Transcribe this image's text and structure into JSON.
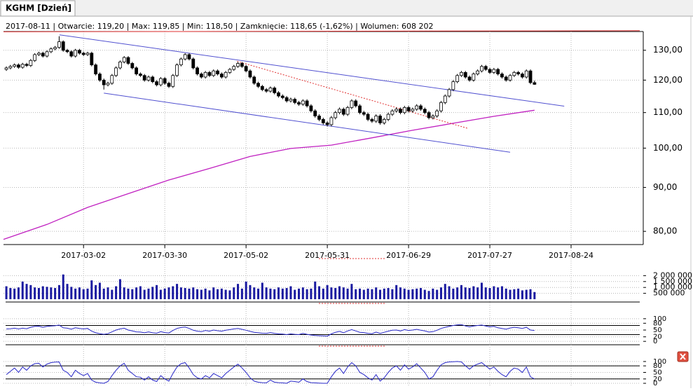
{
  "tab": "KGHM [Dzień]",
  "info": "2017-08-11 | Otwarcie: 119,20 | Max: 119,85 | Min: 118,50 | Zamknięcie: 118,65 (-1,62%)  | Wolumen: 608 202",
  "chart_data": [
    {
      "type": "candlestick",
      "log": true,
      "grid": true,
      "xlim": [
        -0.7,
        155.9
      ],
      "ylim": [
        77.8,
        136.7
      ],
      "yticks": [
        {
          "value": 80,
          "label": "80,00"
        },
        {
          "value": 90,
          "label": "90,00"
        },
        {
          "value": 100,
          "label": "100,00"
        },
        {
          "value": 110,
          "label": "110,00"
        },
        {
          "value": 120,
          "label": "120,00"
        },
        {
          "value": 130,
          "label": "130,00"
        }
      ],
      "xticks": [
        {
          "value": 19,
          "label": "2017-03-02"
        },
        {
          "value": 39,
          "label": "2017-03-30"
        },
        {
          "value": 59,
          "label": "2017-05-02"
        },
        {
          "value": 79,
          "label": "2017-05-31"
        },
        {
          "value": 99,
          "label": "2017-06-29"
        },
        {
          "value": 119,
          "label": "2017-07-27"
        },
        {
          "value": 139,
          "label": "2017-08-24"
        }
      ],
      "open": [
        123.5,
        124.0,
        124.5,
        125.0,
        124.2,
        125.2,
        124.8,
        126.5,
        128.5,
        129.0,
        128.0,
        129.5,
        130.5,
        131.0,
        133.0,
        130.0,
        129.5,
        128.0,
        130.0,
        129.0,
        128.5,
        129.0,
        125.0,
        122.0,
        120.0,
        118.5,
        119.0,
        121.5,
        124.0,
        126.0,
        127.5,
        125.5,
        124.0,
        122.0,
        121.5,
        120.0,
        121.0,
        119.5,
        118.5,
        120.5,
        119.0,
        118.0,
        121.5,
        125.0,
        127.0,
        128.5,
        127.0,
        124.0,
        122.0,
        121.0,
        122.5,
        121.5,
        123.0,
        122.0,
        121.0,
        122.5,
        123.5,
        124.5,
        125.5,
        124.5,
        123.0,
        121.0,
        119.0,
        118.0,
        117.0,
        116.5,
        117.5,
        116.0,
        115.0,
        114.5,
        113.5,
        114.0,
        113.0,
        112.5,
        113.5,
        112.0,
        110.5,
        109.0,
        108.0,
        107.0,
        106.5,
        108.5,
        110.0,
        111.0,
        109.5,
        111.5,
        113.5,
        112.0,
        110.0,
        109.5,
        108.0,
        107.5,
        109.0,
        107.0,
        108.0,
        109.5,
        110.5,
        111.0,
        110.0,
        111.5,
        110.5,
        111.0,
        112.0,
        111.0,
        110.0,
        108.5,
        109.0,
        110.5,
        113.0,
        115.0,
        117.0,
        119.5,
        121.5,
        122.5,
        121.0,
        120.0,
        122.0,
        123.0,
        124.5,
        123.5,
        122.5,
        123.5,
        122.0,
        121.0,
        120.0,
        121.5,
        122.5,
        122.0,
        121.0,
        123.0,
        119.2
      ],
      "high": [
        124.5,
        125.0,
        125.5,
        125.5,
        125.7,
        125.7,
        127.0,
        129.0,
        129.5,
        129.5,
        130.0,
        131.0,
        131.5,
        135.0,
        133.5,
        130.5,
        130.0,
        130.5,
        130.5,
        129.5,
        129.5,
        129.5,
        125.5,
        122.5,
        120.5,
        119.5,
        122.0,
        124.5,
        126.5,
        128.0,
        128.0,
        126.0,
        124.5,
        122.5,
        122.0,
        121.5,
        121.5,
        120.0,
        121.0,
        121.0,
        119.5,
        122.0,
        125.5,
        127.5,
        129.0,
        129.0,
        127.5,
        124.5,
        122.5,
        123.0,
        123.0,
        123.5,
        123.5,
        122.5,
        123.0,
        124.0,
        125.0,
        126.0,
        126.0,
        125.0,
        123.5,
        121.5,
        119.5,
        118.5,
        117.5,
        118.0,
        118.0,
        116.5,
        115.5,
        115.0,
        114.5,
        114.5,
        113.5,
        114.0,
        114.0,
        112.5,
        111.0,
        109.5,
        108.5,
        107.5,
        109.0,
        110.5,
        111.5,
        111.5,
        112.0,
        114.0,
        114.0,
        112.5,
        110.5,
        110.0,
        108.5,
        109.5,
        109.5,
        108.5,
        110.0,
        111.0,
        111.5,
        111.5,
        112.0,
        112.0,
        111.5,
        112.5,
        112.5,
        111.5,
        110.5,
        109.5,
        111.0,
        113.5,
        115.5,
        117.5,
        120.0,
        122.0,
        123.0,
        123.0,
        121.5,
        122.5,
        123.5,
        125.0,
        125.0,
        124.0,
        124.0,
        124.0,
        122.5,
        121.5,
        122.0,
        123.0,
        123.0,
        122.5,
        123.5,
        123.5,
        119.85
      ],
      "low": [
        123.0,
        123.5,
        124.0,
        123.7,
        123.7,
        124.3,
        124.3,
        126.0,
        128.0,
        127.5,
        127.5,
        129.0,
        130.0,
        130.5,
        129.5,
        129.0,
        127.5,
        127.5,
        128.5,
        128.0,
        128.0,
        124.5,
        121.5,
        119.5,
        117.0,
        118.0,
        118.5,
        121.0,
        123.5,
        125.5,
        125.0,
        123.5,
        121.5,
        121.0,
        119.5,
        119.5,
        119.0,
        118.0,
        118.0,
        118.5,
        117.5,
        117.5,
        121.0,
        124.5,
        126.5,
        126.5,
        123.5,
        121.5,
        120.5,
        120.5,
        121.0,
        121.0,
        121.5,
        120.5,
        120.5,
        122.0,
        123.0,
        124.0,
        124.0,
        122.5,
        120.5,
        118.5,
        117.5,
        116.5,
        116.0,
        116.0,
        115.5,
        114.5,
        114.0,
        113.0,
        113.0,
        112.5,
        112.0,
        112.0,
        111.5,
        110.0,
        108.5,
        107.5,
        106.5,
        106.0,
        106.0,
        108.0,
        109.5,
        109.0,
        109.0,
        111.0,
        111.5,
        109.5,
        109.0,
        107.5,
        107.0,
        107.0,
        106.5,
        106.5,
        107.5,
        109.0,
        110.0,
        109.5,
        109.5,
        110.0,
        110.0,
        110.5,
        110.5,
        109.5,
        108.0,
        108.0,
        108.5,
        110.0,
        112.5,
        114.5,
        116.5,
        119.0,
        121.0,
        120.5,
        119.5,
        119.5,
        121.5,
        122.5,
        123.0,
        122.0,
        122.0,
        121.5,
        120.5,
        119.5,
        119.5,
        121.0,
        121.5,
        120.5,
        120.5,
        118.7,
        118.5
      ],
      "close": [
        124.0,
        124.5,
        125.0,
        124.2,
        125.2,
        124.8,
        126.5,
        128.5,
        129.0,
        128.0,
        129.5,
        130.5,
        131.0,
        133.0,
        130.0,
        129.5,
        128.0,
        130.0,
        129.0,
        128.5,
        129.0,
        125.0,
        122.0,
        120.0,
        118.5,
        119.0,
        121.5,
        124.0,
        126.0,
        127.5,
        125.5,
        124.0,
        122.0,
        121.5,
        120.0,
        121.0,
        119.5,
        118.5,
        120.5,
        119.0,
        118.0,
        121.5,
        125.0,
        127.0,
        128.5,
        127.0,
        124.0,
        122.0,
        121.0,
        122.5,
        121.5,
        123.0,
        122.0,
        121.0,
        122.5,
        123.5,
        124.5,
        125.5,
        124.5,
        123.0,
        121.0,
        119.0,
        118.0,
        117.0,
        116.5,
        117.5,
        116.0,
        115.0,
        114.5,
        113.5,
        114.0,
        113.0,
        112.5,
        113.5,
        112.0,
        110.5,
        109.0,
        108.0,
        107.0,
        106.5,
        108.5,
        110.0,
        111.0,
        109.5,
        111.5,
        113.5,
        112.0,
        110.0,
        109.5,
        108.0,
        107.5,
        109.0,
        107.0,
        108.0,
        109.5,
        110.5,
        111.0,
        110.0,
        111.5,
        110.5,
        111.0,
        112.0,
        111.0,
        110.0,
        108.5,
        109.0,
        110.5,
        113.0,
        115.0,
        117.0,
        119.5,
        121.5,
        122.5,
        121.0,
        120.0,
        122.0,
        123.0,
        124.5,
        123.5,
        122.5,
        123.5,
        122.0,
        121.0,
        120.0,
        121.5,
        122.5,
        122.0,
        121.0,
        123.0,
        119.2,
        118.65
      ],
      "ma": {
        "color": "#c020c0",
        "x": [
          -0.7,
          10,
          20,
          30,
          40,
          50,
          60,
          70,
          80,
          90,
          100,
          110,
          120,
          130
        ],
        "values": [
          78.3,
          81.5,
          85.3,
          88.5,
          91.8,
          94.7,
          97.8,
          99.9,
          100.8,
          102.8,
          104.9,
          106.9,
          108.9,
          110.7
        ]
      },
      "lines": [
        {
          "color": "#e03030",
          "dashed": false,
          "x": [
            -0.7,
            155.9
          ],
          "values": [
            136.6,
            137.0
          ]
        },
        {
          "color": "#5050d0",
          "dashed": false,
          "x": [
            13.1,
            137.3
          ],
          "values": [
            135.5,
            111.9
          ]
        },
        {
          "color": "#5050d0",
          "dashed": false,
          "x": [
            24,
            124
          ],
          "values": [
            115.9,
            98.9
          ]
        },
        {
          "color": "#e03030",
          "dashed": true,
          "x": [
            56.8,
            113.7
          ],
          "values": [
            126.2,
            105.4
          ]
        }
      ]
    },
    {
      "type": "bar",
      "color": "#1a1aa0",
      "ylim": [
        0,
        2500000
      ],
      "yticks": [
        {
          "value": 500000,
          "label": "500 000"
        },
        {
          "value": 1000000,
          "label": "1 000 000"
        },
        {
          "value": 1500000,
          "label": "1 500 000"
        },
        {
          "value": 2000000,
          "label": "2 000 000"
        }
      ],
      "values": [
        1100000,
        950000,
        900000,
        1000000,
        1500000,
        1300000,
        1200000,
        1000000,
        950000,
        1100000,
        1050000,
        1000000,
        950000,
        1200000,
        2100000,
        1300000,
        1050000,
        900000,
        1000000,
        850000,
        900000,
        1600000,
        1200000,
        1400000,
        900000,
        1000000,
        800000,
        1100000,
        1700000,
        1000000,
        900000,
        850000,
        1000000,
        1100000,
        800000,
        900000,
        1050000,
        1200000,
        800000,
        900000,
        1000000,
        1100000,
        1300000,
        1000000,
        950000,
        900000,
        1000000,
        850000,
        800000,
        900000,
        750000,
        1000000,
        850000,
        900000,
        800000,
        750000,
        1000000,
        1300000,
        900000,
        1500000,
        1200000,
        1000000,
        900000,
        1400000,
        1000000,
        900000,
        850000,
        1000000,
        900000,
        950000,
        1100000,
        800000,
        900000,
        1000000,
        850000,
        900000,
        1500000,
        1100000,
        900000,
        1200000,
        1000000,
        950000,
        1100000,
        1000000,
        900000,
        1300000,
        850000,
        900000,
        800000,
        900000,
        850000,
        1000000,
        800000,
        900000,
        950000,
        850000,
        1200000,
        1000000,
        900000,
        800000,
        850000,
        900000,
        950000,
        800000,
        700000,
        900000,
        800000,
        1000000,
        1300000,
        1100000,
        900000,
        1000000,
        1200000,
        1000000,
        950000,
        1100000,
        1000000,
        1400000,
        1000000,
        950000,
        1100000,
        1000000,
        1100000,
        900000,
        800000,
        850000,
        900000,
        750000,
        800000,
        850000,
        608202
      ]
    },
    {
      "type": "line",
      "color": "#2828c8",
      "ylim": [
        -15,
        115
      ],
      "yticks": [
        0,
        20,
        50,
        80,
        100
      ],
      "levels": [
        70,
        30
      ],
      "values": [
        55,
        56,
        58,
        55,
        58,
        56,
        62,
        66,
        67,
        62,
        66,
        68,
        69,
        72,
        60,
        58,
        54,
        60,
        57,
        55,
        57,
        45,
        38,
        34,
        31,
        34,
        42,
        50,
        55,
        58,
        50,
        46,
        42,
        41,
        38,
        42,
        38,
        36,
        43,
        39,
        37,
        48,
        57,
        61,
        63,
        57,
        49,
        45,
        43,
        48,
        45,
        50,
        47,
        45,
        49,
        52,
        55,
        57,
        53,
        49,
        44,
        40,
        38,
        36,
        35,
        39,
        35,
        33,
        32,
        30,
        33,
        31,
        30,
        35,
        31,
        28,
        26,
        25,
        24,
        23,
        33,
        40,
        44,
        38,
        46,
        52,
        46,
        40,
        39,
        35,
        34,
        41,
        35,
        40,
        45,
        49,
        50,
        46,
        52,
        48,
        50,
        53,
        49,
        46,
        41,
        43,
        49,
        57,
        62,
        66,
        70,
        73,
        74,
        68,
        64,
        68,
        70,
        72,
        68,
        64,
        66,
        60,
        57,
        54,
        59,
        62,
        60,
        57,
        62,
        50,
        48
      ]
    },
    {
      "type": "line",
      "color": "#2828c8",
      "ylim": [
        -16,
        119
      ],
      "yticks": [
        0,
        20,
        50,
        80,
        100
      ],
      "levels": [
        80,
        20
      ],
      "values": [
        40,
        55,
        70,
        50,
        75,
        60,
        80,
        90,
        92,
        75,
        88,
        95,
        97,
        98,
        60,
        50,
        30,
        60,
        45,
        35,
        45,
        15,
        5,
        2,
        0,
        8,
        35,
        60,
        80,
        92,
        60,
        45,
        30,
        28,
        15,
        30,
        15,
        8,
        35,
        20,
        10,
        45,
        75,
        90,
        95,
        70,
        40,
        25,
        20,
        35,
        25,
        45,
        35,
        25,
        45,
        60,
        75,
        88,
        70,
        50,
        25,
        10,
        5,
        3,
        2,
        15,
        5,
        3,
        2,
        0,
        10,
        8,
        5,
        20,
        8,
        3,
        2,
        1,
        0,
        0,
        30,
        55,
        70,
        45,
        75,
        95,
        80,
        50,
        40,
        25,
        15,
        40,
        10,
        25,
        50,
        70,
        80,
        60,
        85,
        65,
        75,
        90,
        70,
        50,
        20,
        30,
        60,
        85,
        95,
        98,
        99,
        100,
        98,
        80,
        65,
        80,
        88,
        95,
        80,
        65,
        75,
        55,
        40,
        30,
        55,
        70,
        65,
        50,
        75,
        30,
        20
      ]
    }
  ]
}
